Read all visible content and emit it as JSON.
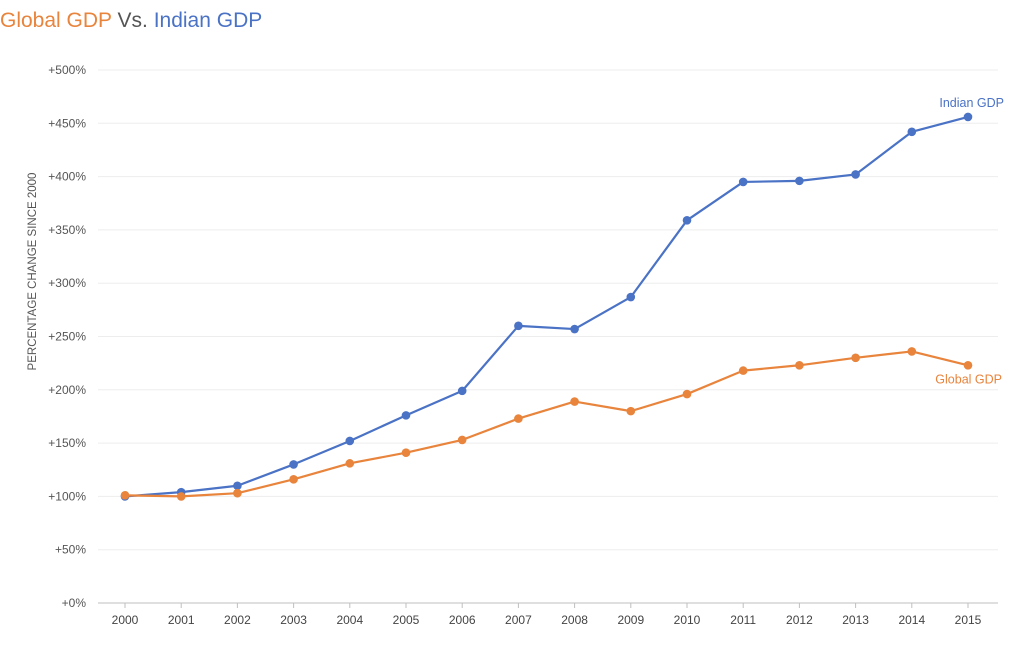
{
  "title_parts": [
    {
      "text": "Global GDP",
      "color": "#E8843C"
    },
    {
      "text": " Vs. ",
      "color": "#555555"
    },
    {
      "text": "Indian GDP",
      "color": "#4A72C5"
    }
  ],
  "chart_data": {
    "type": "line",
    "title": "Global GDP Vs. Indian GDP",
    "ylabel": "PERCENTAGE CHANGE SINCE 2000",
    "xlabel": "",
    "categories": [
      "2000",
      "2001",
      "2002",
      "2003",
      "2004",
      "2005",
      "2006",
      "2007",
      "2008",
      "2009",
      "2010",
      "2011",
      "2012",
      "2013",
      "2014",
      "2015"
    ],
    "ylim": [
      0,
      500
    ],
    "yticks": [
      0,
      50,
      100,
      150,
      200,
      250,
      300,
      350,
      400,
      450,
      500
    ],
    "ytick_labels": [
      "+0%",
      "+50%",
      "+100%",
      "+150%",
      "+200%",
      "+250%",
      "+300%",
      "+350%",
      "+400%",
      "+450%",
      "+500%"
    ],
    "grid": true,
    "series": [
      {
        "name": "Indian GDP",
        "color": "#4A72C5",
        "values": [
          100,
          104,
          110,
          130,
          152,
          176,
          199,
          260,
          257,
          287,
          359,
          395,
          396,
          402,
          442,
          456
        ]
      },
      {
        "name": "Global GDP",
        "color": "#E8843C",
        "values": [
          101,
          100,
          103,
          116,
          131,
          141,
          153,
          173,
          189,
          180,
          196,
          218,
          223,
          230,
          236,
          223
        ]
      }
    ]
  }
}
